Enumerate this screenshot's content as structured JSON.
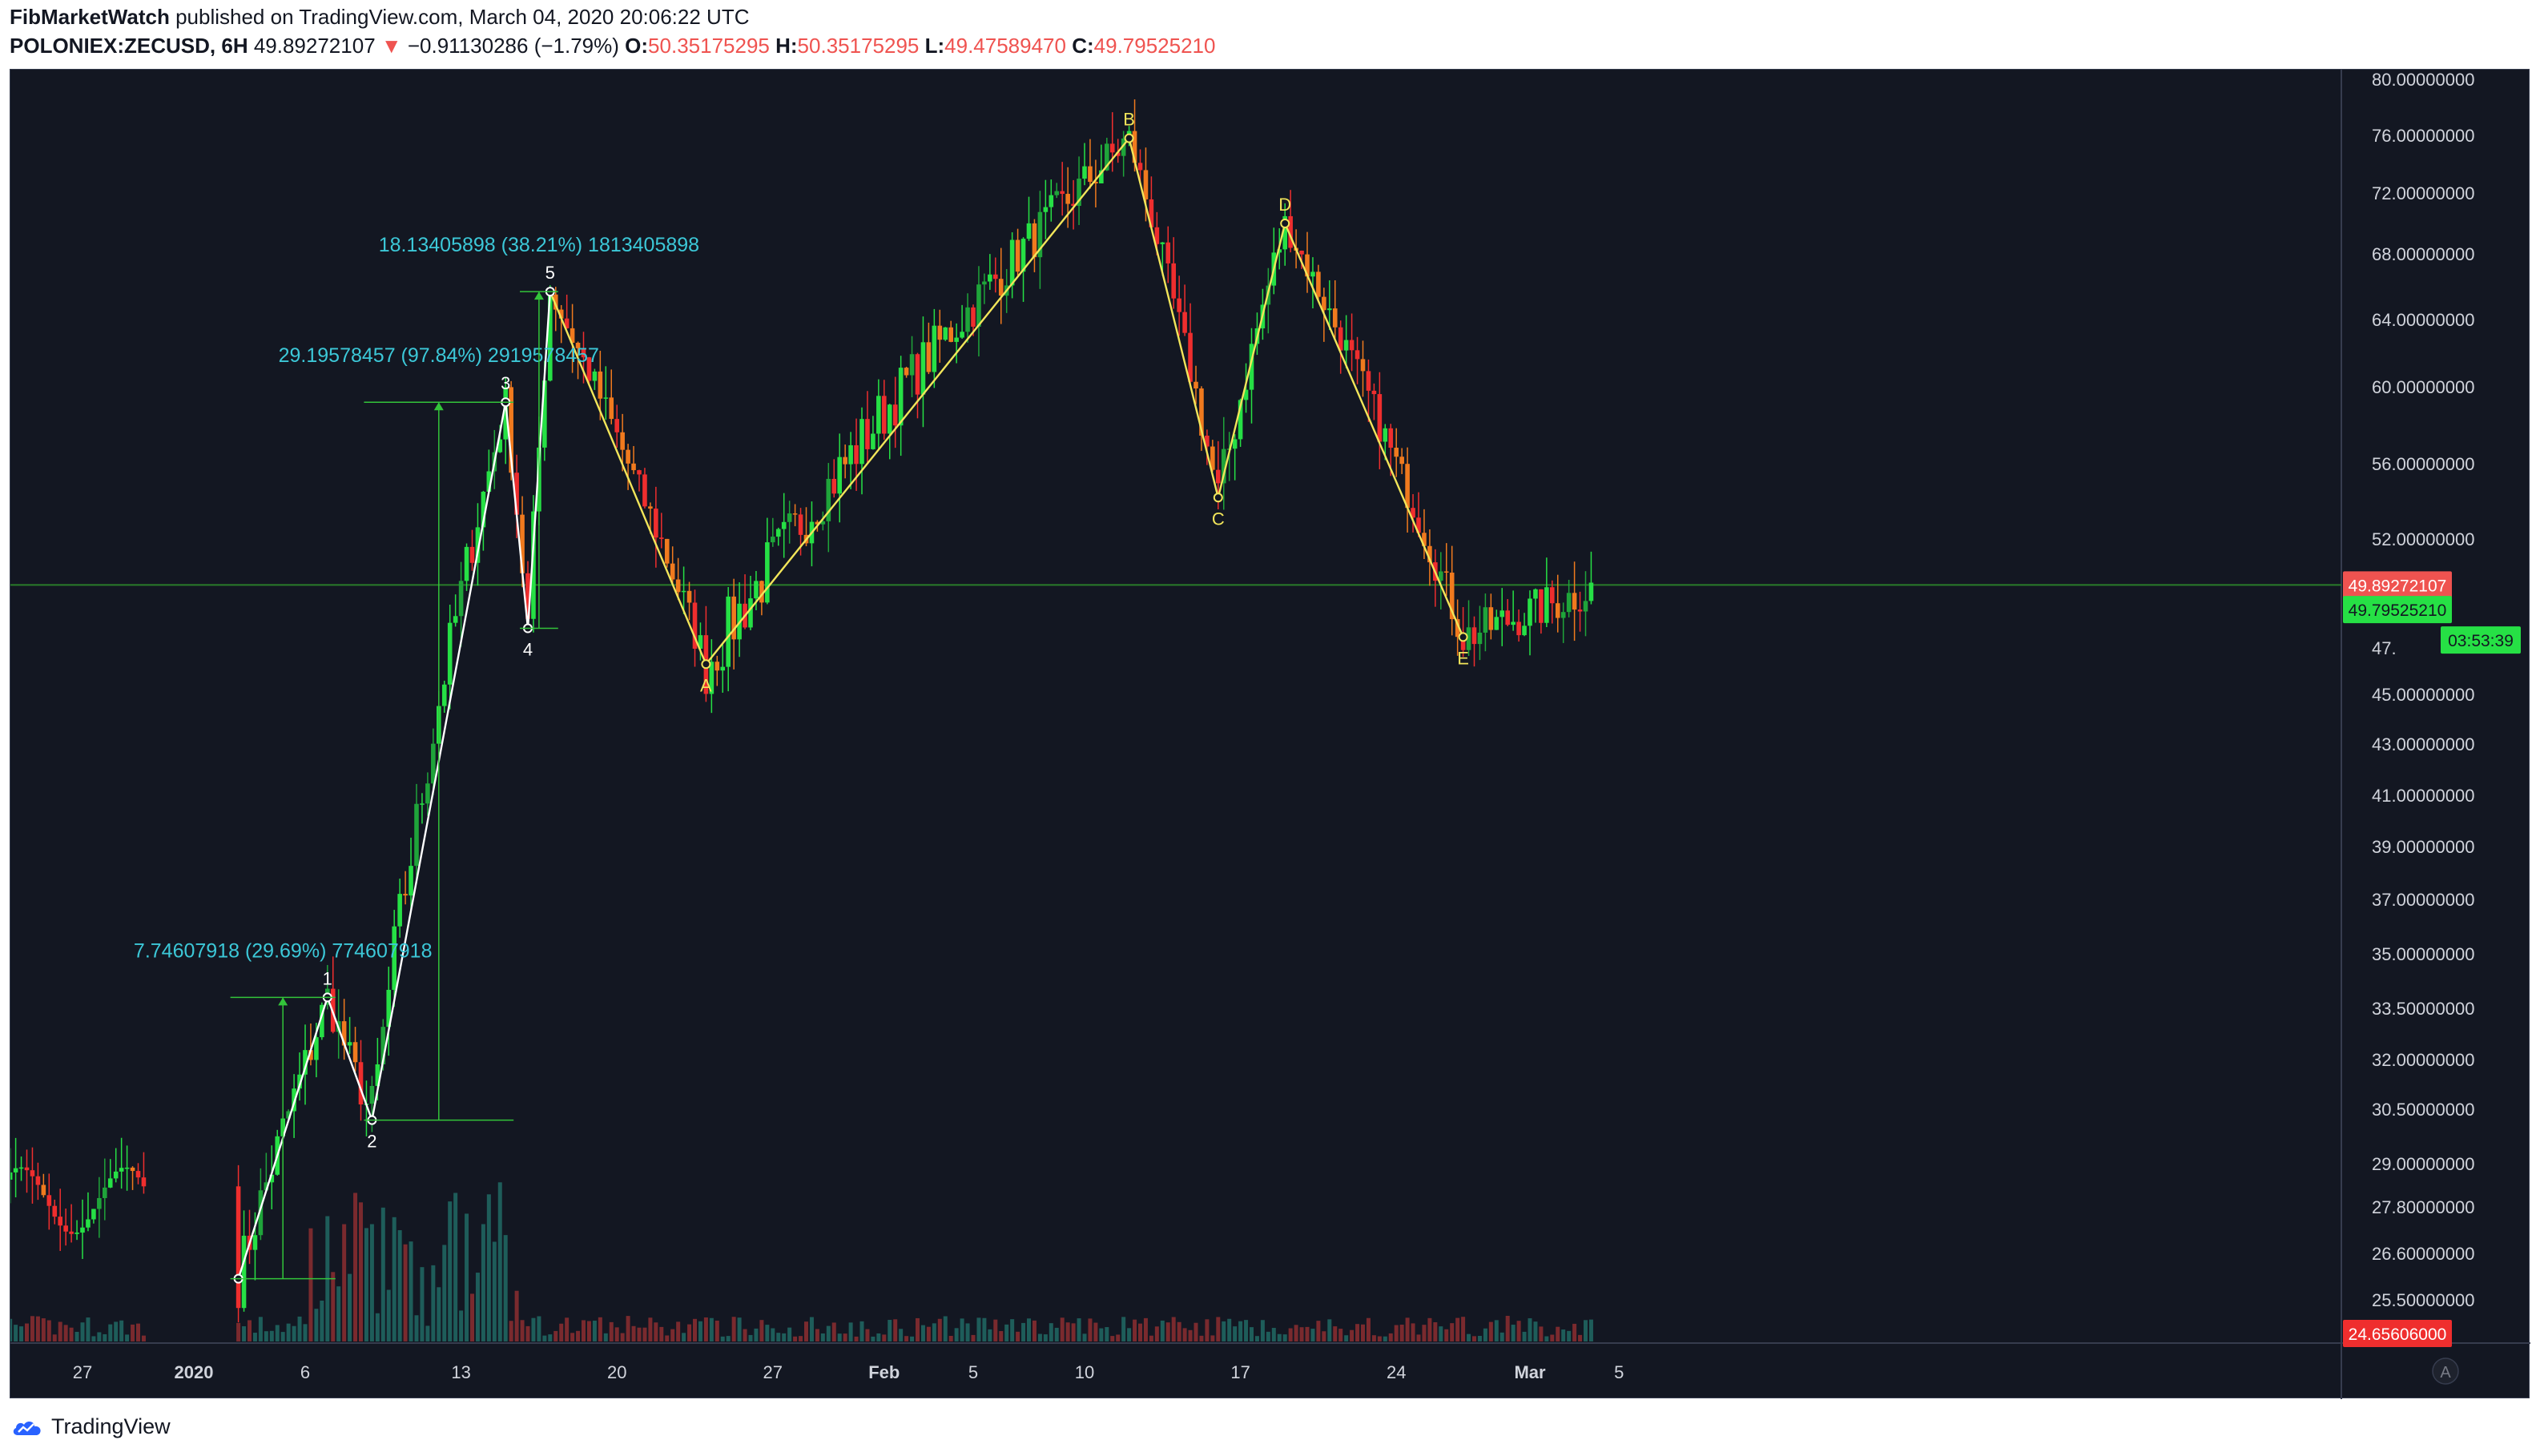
{
  "header": {
    "author": "FibMarketWatch",
    "published_text": "published on TradingView.com, March 04, 2020 20:06:22 UTC",
    "symbol": "POLONIEX:ZECUSD, 6H",
    "last": "49.89272107",
    "change_arrow": "▼",
    "change": "−0.91130286 (−1.79%)",
    "o_label": "O:",
    "o_value": "50.35175295",
    "h_label": "H:",
    "h_value": "50.35175295",
    "l_label": "L:",
    "l_value": "49.47589470",
    "c_label": "C:",
    "c_value": "49.79525210"
  },
  "footer": {
    "brand": "TradingView"
  },
  "colors": {
    "background": "#131722",
    "up": "#26e045",
    "up_dark": "#1fa43a",
    "down": "#ef2e2e",
    "down_orange": "#f07a1e",
    "volume_up": "#1e5d5a",
    "volume_down": "#7a2a2e",
    "elliott": "#ffffff",
    "abcde": "#f2e55a",
    "measure": "#33c43a",
    "measure_text": "#3cc8d8",
    "grid_line": "#2a7d2a"
  },
  "chart_data": {
    "type": "candlestick",
    "symbol": "POLONIEX:ZECUSD",
    "interval": "6H",
    "x_labels": [
      "27",
      "2020",
      "6",
      "13",
      "20",
      "27",
      "Feb",
      "5",
      "10",
      "17",
      "24",
      "Mar",
      "5"
    ],
    "y_ticks": [
      "80.00000000",
      "76.00000000",
      "72.00000000",
      "68.00000000",
      "64.00000000",
      "60.00000000",
      "56.00000000",
      "52.00000000",
      "47.",
      "45.00000000",
      "43.00000000",
      "41.00000000",
      "39.00000000",
      "37.00000000",
      "35.00000000",
      "33.50000000",
      "32.00000000",
      "30.50000000",
      "29.00000000",
      "27.80000000",
      "26.60000000",
      "25.50000000"
    ],
    "price_tags": [
      {
        "value": "49.89272107",
        "color": "#ef5350"
      },
      {
        "value": "49.79525210",
        "color": "#26e045"
      },
      {
        "value": "03:53:39",
        "color": "#26e045"
      },
      {
        "value": "24.65606000",
        "color": "#ef2e2e"
      }
    ],
    "wave_points": [
      {
        "label": "1",
        "date": "2020-01-07",
        "price": 33.8
      },
      {
        "label": "2",
        "date": "2020-01-09",
        "price": 30.2
      },
      {
        "label": "3",
        "date": "2020-01-15",
        "price": 59.2
      },
      {
        "label": "4",
        "date": "2020-01-16",
        "price": 47.9
      },
      {
        "label": "5",
        "date": "2020-01-17",
        "price": 65.7
      },
      {
        "label": "A",
        "date": "2020-01-24",
        "price": 46.3
      },
      {
        "label": "B",
        "date": "2020-02-12",
        "price": 75.8
      },
      {
        "label": "C",
        "date": "2020-02-16",
        "price": 54.2
      },
      {
        "label": "D",
        "date": "2020-02-19",
        "price": 70.0
      },
      {
        "label": "E",
        "date": "2020-02-27",
        "price": 47.5
      }
    ],
    "wave_start": {
      "date": "2020-01-03",
      "price": 26.0
    },
    "measurements": [
      {
        "text": "7.74607918 (29.69%) 774607918"
      },
      {
        "text": "29.19578457 (97.84%) 2919578457"
      },
      {
        "text": "18.13405898 (38.21%) 1813405898"
      }
    ],
    "horizontal_line": 49.89
  }
}
